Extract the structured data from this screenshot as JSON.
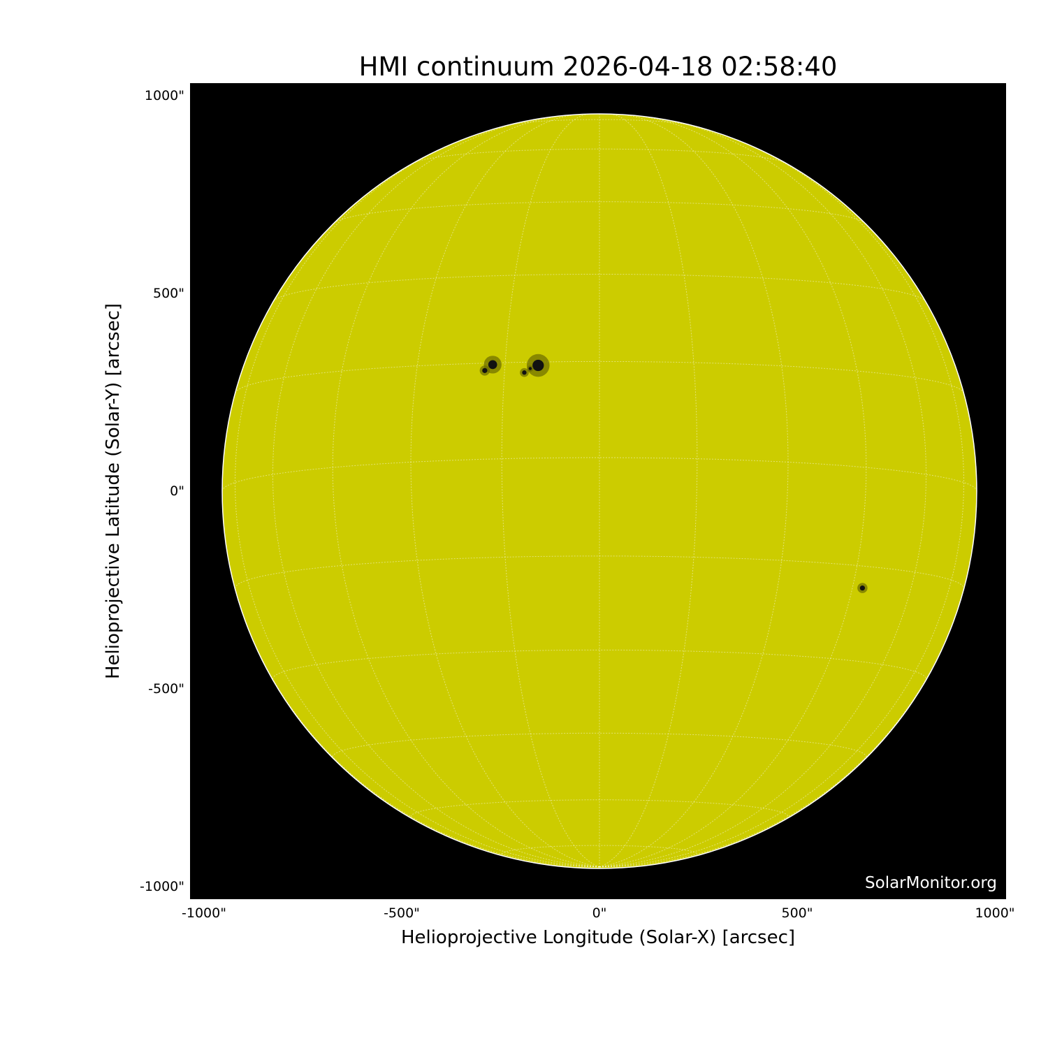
{
  "title": "HMI continuum 2026-04-18 02:58:40",
  "watermark": "SolarMonitor.org",
  "axes": {
    "xlabel": "Helioprojective Longitude (Solar-X) [arcsec]",
    "ylabel": "Helioprojective Latitude (Solar-Y) [arcsec]",
    "xticks": [
      "-1000\"",
      "-500\"",
      "0\"",
      "500\"",
      "1000\""
    ],
    "yticks": [
      "1000\"",
      "500\"",
      "0\"",
      "-500\"",
      "-1000\""
    ],
    "xlim": [
      -1035,
      1027
    ],
    "ylim": [
      -1032,
      1030
    ],
    "grid": "heliographic lat/lon, 15 degree spacing, dotted white"
  },
  "image": {
    "disk_radius_arcsec": 954,
    "b0_deg": -5.1,
    "disk_color": "#cccc00",
    "background_color": "#000000",
    "sunspots_arcsec": [
      {
        "x": -270,
        "y": 320,
        "r": 14
      },
      {
        "x": -290,
        "y": 305,
        "r": 8
      },
      {
        "x": -155,
        "y": 318,
        "r": 18
      },
      {
        "x": -190,
        "y": 300,
        "r": 7
      },
      {
        "x": -175,
        "y": 310,
        "r": 5
      },
      {
        "x": 665,
        "y": -245,
        "r": 8
      }
    ]
  }
}
